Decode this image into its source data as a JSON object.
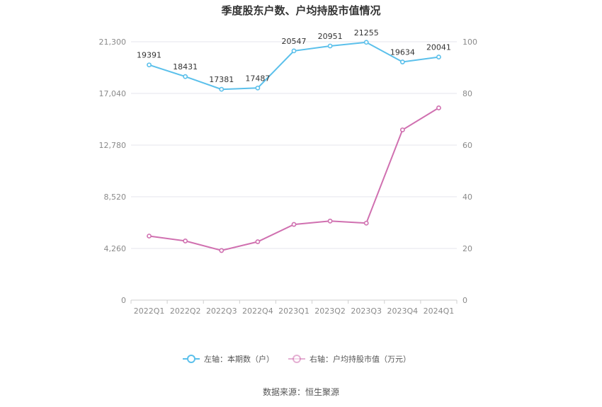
{
  "chart_data": {
    "type": "line",
    "title": "季度股东户数、户均持股市值情况",
    "categories": [
      "2022Q1",
      "2022Q2",
      "2022Q3",
      "2022Q4",
      "2023Q1",
      "2023Q2",
      "2023Q3",
      "2023Q4",
      "2024Q1"
    ],
    "y_left": {
      "ylim": [
        0,
        21300
      ],
      "ticks": [
        "0",
        "4,260",
        "8,520",
        "12,780",
        "17,040",
        "21,300"
      ]
    },
    "y_right": {
      "ylim": [
        0,
        100
      ],
      "ticks": [
        "0",
        "20",
        "40",
        "60",
        "80",
        "100"
      ]
    },
    "series": [
      {
        "name": "左轴：本期数（户）",
        "axis": "left",
        "color": "#5bc0eb",
        "values": [
          19391,
          18431,
          17381,
          17487,
          20547,
          20951,
          21255,
          19634,
          20041
        ],
        "labels": [
          "19391",
          "18431",
          "17381",
          "17487",
          "20547",
          "20951",
          "21255",
          "19634",
          "20041"
        ]
      },
      {
        "name": "右轴：户均持股市值（万元）",
        "axis": "right",
        "color": "#d070b0",
        "values": [
          24.8,
          22.9,
          19.2,
          22.6,
          29.3,
          30.6,
          29.8,
          65.9,
          74.4
        ]
      }
    ],
    "grid": true,
    "legend_position": "bottom"
  },
  "source": "数据来源：恒生聚源"
}
